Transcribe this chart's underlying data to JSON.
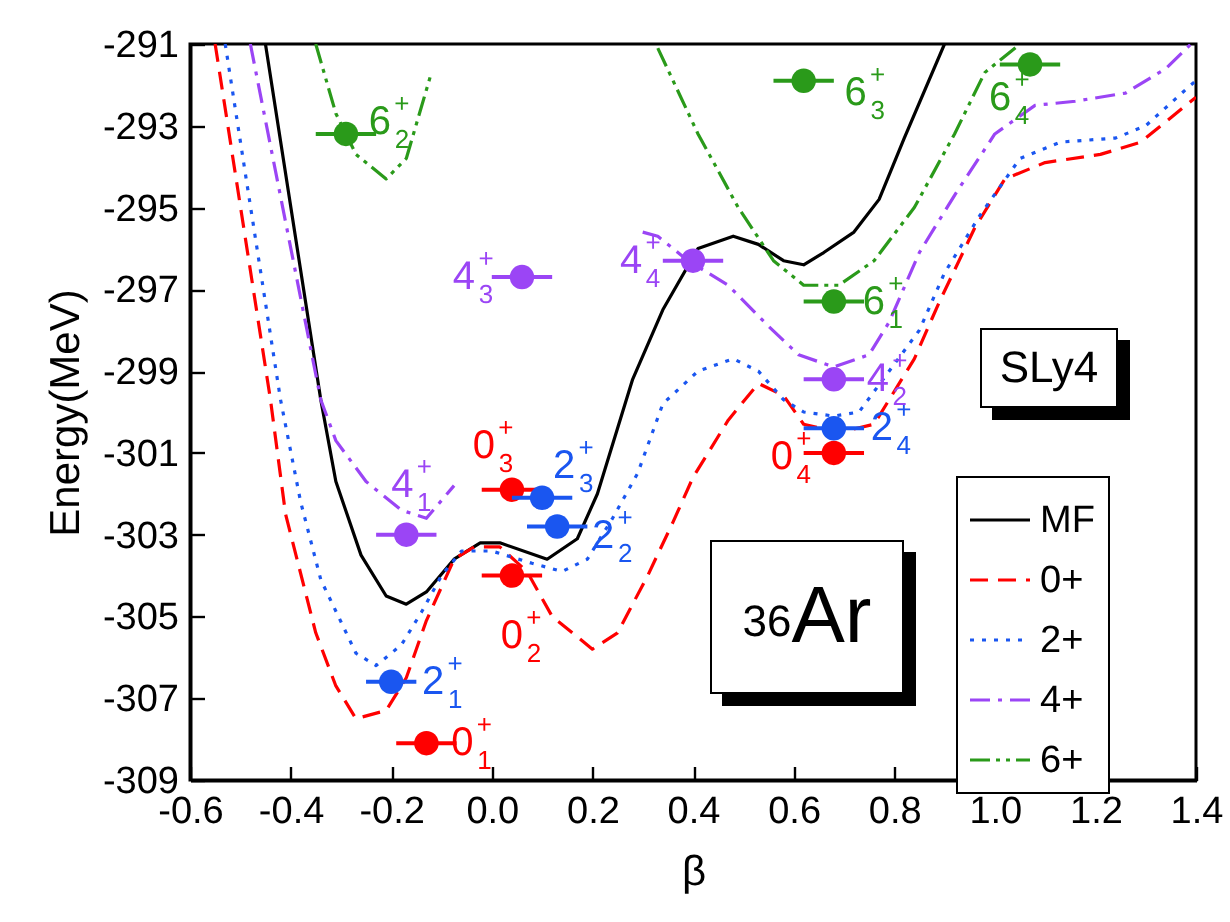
{
  "chart_data": {
    "type": "line",
    "xlabel": "β",
    "ylabel": "Energy(MeV)",
    "xlim": [
      -0.6,
      1.4
    ],
    "ylim": [
      -309,
      -291
    ],
    "xticks": [
      -0.6,
      -0.4,
      -0.2,
      {
        "value": 0,
        "label": "0.0"
      },
      0.2,
      0.4,
      0.6,
      0.8,
      {
        "value": 1,
        "label": "1.0"
      },
      1.2,
      1.4
    ],
    "yticks": [
      -309,
      -307,
      -305,
      -303,
      -301,
      -299,
      -297,
      -295,
      -293,
      -291
    ],
    "grid": false,
    "legend": "bottom right",
    "annotations": [
      "SLy4",
      "$^{36}$Ar"
    ],
    "series": [
      {
        "name": "MF",
        "color": "#000000",
        "line_style": "solid",
        "x": [
          -0.45,
          -0.34,
          -0.31,
          -0.26,
          -0.21,
          -0.17,
          -0.13,
          -0.075,
          -0.023,
          0.016,
          0.11,
          0.17,
          0.21,
          0.28,
          0.34,
          0.41,
          0.48,
          0.53,
          0.58,
          0.62,
          0.66,
          0.72,
          0.77,
          0.82,
          0.9
        ],
        "values": [
          -291,
          -299.7,
          -301.7,
          -303.5,
          -304.5,
          -304.7,
          -304.4,
          -303.6,
          -303.2,
          -303.2,
          -303.6,
          -303.1,
          -302.0,
          -299.2,
          -297.5,
          -296.0,
          -295.7,
          -295.9,
          -296.3,
          -296.4,
          -296.1,
          -295.6,
          -294.8,
          -293.3,
          -291
        ]
      },
      {
        "name": "0+",
        "color": "#ff0000",
        "line_style": "dashed",
        "x": [
          -0.55,
          -0.44,
          -0.41,
          -0.35,
          -0.31,
          -0.27,
          -0.21,
          -0.17,
          -0.13,
          -0.075,
          -0.035,
          0.016,
          0.07,
          0.12,
          0.2,
          0.25,
          0.31,
          0.36,
          0.4,
          0.47,
          0.53,
          0.58,
          0.62,
          0.69,
          0.76,
          0.84,
          0.89,
          0.96,
          1.02,
          1.1,
          1.21,
          1.29,
          1.38,
          1.4
        ],
        "values": [
          -291,
          -299.7,
          -302.5,
          -305.4,
          -306.7,
          -307.5,
          -307.3,
          -306.5,
          -305.1,
          -303.6,
          -303.3,
          -303.3,
          -303.9,
          -305.0,
          -305.8,
          -305.4,
          -304.0,
          -302.7,
          -301.6,
          -300.2,
          -299.3,
          -299.6,
          -300.3,
          -300.5,
          -300.3,
          -298.7,
          -297.3,
          -295.5,
          -294.3,
          -293.9,
          -293.7,
          -293.4,
          -292.5,
          -292.3
        ]
      },
      {
        "name": "2+",
        "color": "#1a56f0",
        "line_style": "dotted",
        "x": [
          -0.53,
          -0.42,
          -0.38,
          -0.34,
          -0.27,
          -0.23,
          -0.18,
          -0.14,
          -0.1,
          -0.06,
          0,
          0.08,
          0.14,
          0.19,
          0.24,
          0.29,
          0.34,
          0.41,
          0.48,
          0.53,
          0.58,
          0.62,
          0.68,
          0.73,
          0.85,
          0.9,
          0.97,
          1.05,
          1.13,
          1.24,
          1.3,
          1.39,
          1.4
        ],
        "values": [
          -291,
          -299.7,
          -302.2,
          -304.1,
          -305.9,
          -306.2,
          -305.7,
          -304.9,
          -304.0,
          -303.4,
          -303.4,
          -303.7,
          -303.9,
          -303.6,
          -302.6,
          -301.5,
          -299.8,
          -299.0,
          -298.7,
          -299.0,
          -299.7,
          -300.0,
          -300.1,
          -300.0,
          -298.0,
          -296.6,
          -295.2,
          -293.8,
          -293.4,
          -293.3,
          -293.0,
          -292.0,
          -291.9
        ]
      },
      {
        "name": "4+",
        "color": "#9b45f5",
        "line_style": "dashdot",
        "x": [
          -0.48,
          -0.34,
          -0.31,
          -0.25,
          -0.18,
          -0.13,
          -0.075,
          null,
          0.3,
          0.33,
          0.39,
          0.47,
          0.55,
          0.61,
          0.68,
          0.75,
          0.79,
          0.85,
          0.92,
          1.0,
          1.08,
          1.16,
          1.26,
          1.34,
          1.39
        ],
        "values": [
          -291,
          -299.7,
          -300.7,
          -301.7,
          -302.4,
          -302.6,
          -301.8,
          null,
          -295.6,
          -295.7,
          -296.3,
          -296.9,
          -297.9,
          -298.6,
          -298.9,
          -298.6,
          -297.8,
          -296.1,
          -294.7,
          -293.2,
          -292.5,
          -292.4,
          -292.2,
          -291.6,
          -291
        ]
      },
      {
        "name": "6+",
        "color": "#2a9a1a",
        "line_style": "dashdotdot",
        "x": [
          -0.35,
          -0.31,
          -0.27,
          -0.21,
          -0.17,
          -0.12,
          null,
          0.33,
          0.41,
          0.49,
          0.56,
          0.62,
          0.69,
          0.76,
          0.84,
          0.92,
          0.98,
          1.05
        ],
        "values": [
          -291,
          -292.7,
          -293.7,
          -294.3,
          -293.8,
          -291.7,
          null,
          -291.1,
          -293.2,
          -295.0,
          -296.3,
          -296.9,
          -296.9,
          -296.3,
          -295.0,
          -293.2,
          -291.7,
          -291
        ]
      },
      {
        "type": "scatter",
        "color": "#ff0000",
        "marker": "circle",
        "x": [
          -0.13,
          0.04,
          0.04,
          0.68
        ],
        "values": [
          -308.1,
          -304.0,
          -301.9,
          -301.0
        ],
        "xerrors": [
          0.06,
          0.06,
          0.06,
          0.06
        ],
        "value_labels": [
          "0$^{+}$$_{1}$",
          "0$^{+}$$_{2}$",
          "0$^{+}$$_{3}$",
          "0$^{+}$$_{4}$"
        ]
      },
      {
        "type": "scatter",
        "color": "#1a56f0",
        "marker": "circle",
        "x": [
          -0.2,
          0.13,
          0.1,
          0.68
        ],
        "values": [
          -306.6,
          -302.8,
          -302.1,
          -300.4
        ],
        "xerrors": [
          0.05,
          0.06,
          0.06,
          0.06
        ],
        "value_labels": [
          "2$^{+}$$_{1}$",
          "2$^{+}$$_{2}$",
          "2$^{+}$$_{3}$",
          "2$^{+}$$_{4}$"
        ]
      },
      {
        "type": "scatter",
        "color": "#9b45f5",
        "marker": "circle",
        "x": [
          -0.17,
          0.68,
          0.06,
          0.4
        ],
        "values": [
          -303.0,
          -299.2,
          -296.7,
          -296.3
        ],
        "xerrors": [
          0.06,
          0.06,
          0.06,
          0.06
        ],
        "value_labels": [
          "4$^{+}$$_{1}$",
          "4$^{+}$$_{2}$",
          "4$^{+}$$_{3}$",
          "4$^{+}$$_{4}$"
        ]
      },
      {
        "type": "scatter",
        "color": "#2a9a1a",
        "marker": "circle",
        "x": [
          0.68,
          -0.29,
          0.62,
          1.07
        ],
        "values": [
          -297.3,
          -293.2,
          -291.9,
          -291.5
        ],
        "xerrors": [
          0.06,
          0.06,
          0.06,
          0.06
        ],
        "value_labels": [
          "6$^{+}$$_{1}$",
          "6$^{+}$$_{2}$",
          "6$^{+}$$_{3}$",
          "6$^{+}$$_{4}$"
        ]
      }
    ]
  }
}
